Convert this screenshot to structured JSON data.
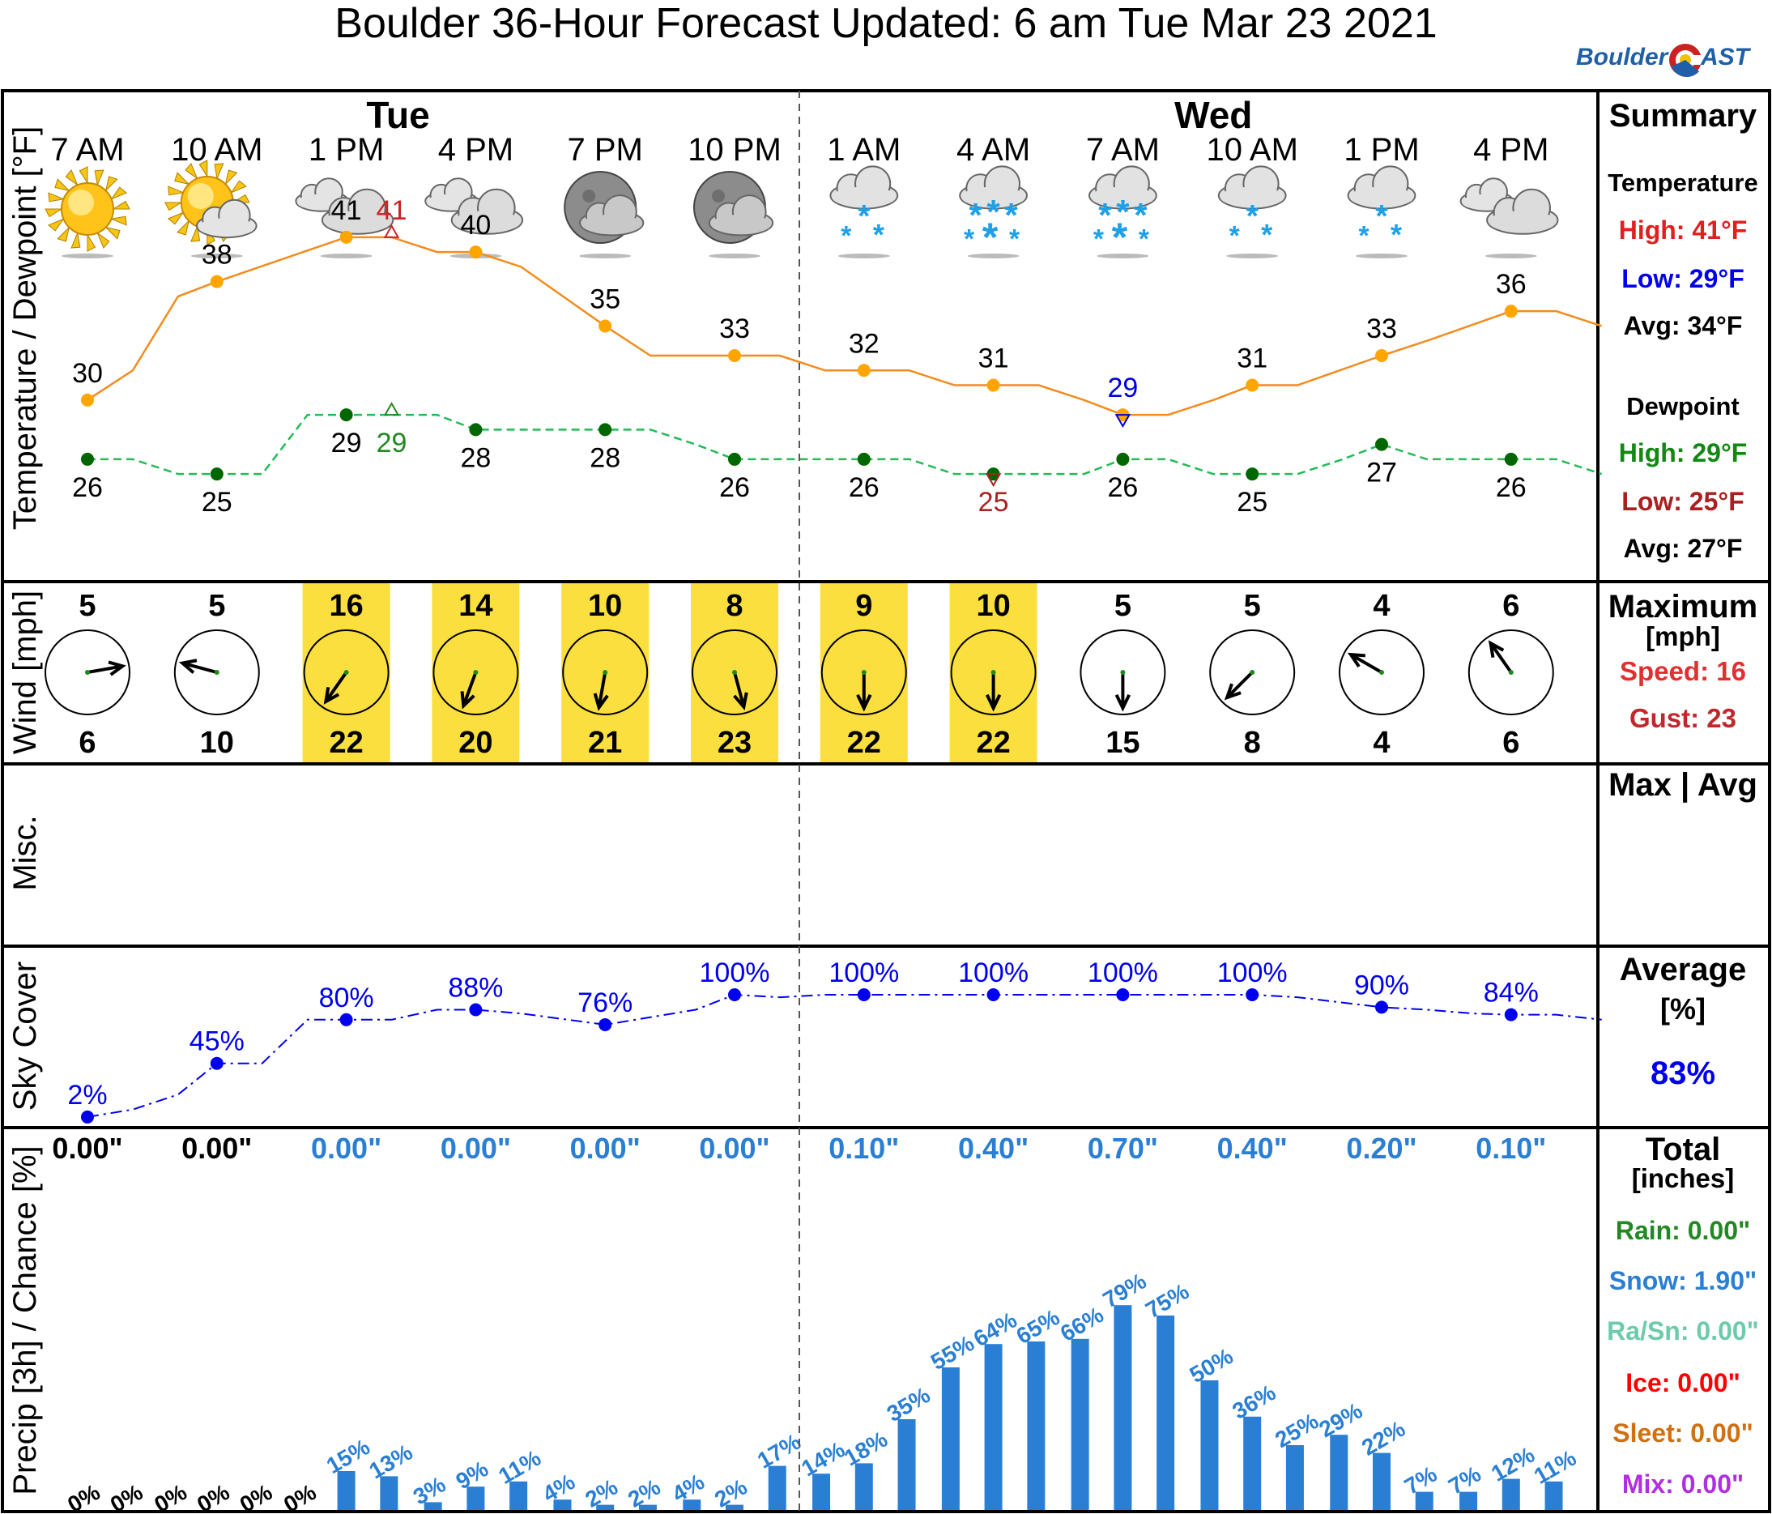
{
  "title": "Boulder 36-Hour Forecast Updated: 6 am Tue Mar 23 2021",
  "logo": {
    "left": "Boulder",
    "right": "AST"
  },
  "days": [
    {
      "label": "Tue",
      "slot": 2.4
    },
    {
      "label": "Wed",
      "slot": 8.7
    }
  ],
  "times": [
    "7 AM",
    "10 AM",
    "1 PM",
    "4 PM",
    "7 PM",
    "10 PM",
    "1 AM",
    "4 AM",
    "7 AM",
    "10 AM",
    "1 PM",
    "4 PM"
  ],
  "icons": [
    "sun",
    "sun-cloud",
    "cloud",
    "cloud",
    "moon-cloud",
    "moon-cloud",
    "snow-light",
    "snow-heavy",
    "snow-heavy",
    "snow-light",
    "snow-light",
    "cloud"
  ],
  "panels": {
    "temperature": "Temperature / Dewpoint [°F]",
    "wind": "Wind [mph]",
    "misc": "Misc.",
    "sky": "Sky Cover",
    "precip": "Precip [3h] / Chance [%]"
  },
  "chart_data": {
    "type": "line",
    "temperature": {
      "values": [
        30,
        38,
        41,
        40,
        35,
        33,
        32,
        31,
        29,
        31,
        33,
        36
      ],
      "color": "#f28c1e",
      "point_color": "#ffa500",
      "labels_shown": [
        "30",
        "38",
        "41",
        "40",
        "35",
        "33",
        "32",
        "31",
        "",
        "31",
        "33",
        "36"
      ],
      "curve": [
        [
          0,
          30
        ],
        [
          0.35,
          32
        ],
        [
          0.7,
          37
        ],
        [
          1,
          38
        ],
        [
          2,
          41
        ],
        [
          2.35,
          41
        ],
        [
          2.7,
          40
        ],
        [
          3,
          40
        ],
        [
          3.35,
          39
        ],
        [
          4,
          35
        ],
        [
          4.35,
          33
        ],
        [
          5,
          33
        ],
        [
          5.35,
          33
        ],
        [
          5.7,
          32
        ],
        [
          6,
          32
        ],
        [
          6.35,
          32
        ],
        [
          6.7,
          31
        ],
        [
          7,
          31
        ],
        [
          7.35,
          31
        ],
        [
          7.7,
          30
        ],
        [
          8,
          29
        ],
        [
          8.35,
          29
        ],
        [
          8.7,
          30
        ],
        [
          9,
          31
        ],
        [
          9.35,
          31
        ],
        [
          10,
          33
        ],
        [
          10.35,
          34
        ],
        [
          11,
          36
        ],
        [
          11.35,
          36
        ],
        [
          11.7,
          35
        ]
      ],
      "high": {
        "value": 41,
        "slot": 2.35,
        "color": "#cc2222"
      },
      "low": {
        "value": 29,
        "slot": 8,
        "color": "#0000dd"
      }
    },
    "dewpoint": {
      "values": [
        26,
        25,
        29,
        28,
        28,
        26,
        26,
        25,
        26,
        25,
        27,
        26
      ],
      "color": "#22bb55",
      "point_color": "#006600",
      "labels_shown": [
        "26",
        "25",
        "29",
        "28",
        "28",
        "26",
        "26",
        "",
        "26",
        "25",
        "27",
        "26"
      ],
      "curve": [
        [
          0,
          26
        ],
        [
          0.35,
          26
        ],
        [
          0.7,
          25
        ],
        [
          1,
          25
        ],
        [
          1.35,
          25
        ],
        [
          1.35,
          25
        ],
        [
          1.7,
          29
        ],
        [
          2,
          29
        ],
        [
          2.35,
          29
        ],
        [
          2.7,
          29
        ],
        [
          3,
          28
        ],
        [
          3.35,
          28
        ],
        [
          3.7,
          28
        ],
        [
          4,
          28
        ],
        [
          4.35,
          28
        ],
        [
          4.7,
          27
        ],
        [
          5,
          26
        ],
        [
          5.35,
          26
        ],
        [
          5.7,
          26
        ],
        [
          6,
          26
        ],
        [
          6.35,
          26
        ],
        [
          6.7,
          25
        ],
        [
          7,
          25
        ],
        [
          7.35,
          25
        ],
        [
          7.7,
          25
        ],
        [
          8,
          26
        ],
        [
          8.35,
          26
        ],
        [
          8.7,
          25
        ],
        [
          9,
          25
        ],
        [
          9.35,
          25
        ],
        [
          9.7,
          26
        ],
        [
          10,
          27
        ],
        [
          10.35,
          26
        ],
        [
          11,
          26
        ],
        [
          11.35,
          26
        ],
        [
          11.7,
          25
        ]
      ],
      "high": {
        "value": 29,
        "slot": 2.35,
        "color": "#228822"
      },
      "low": {
        "value": 25,
        "slot": 7,
        "color": "#aa2222"
      }
    },
    "temp_axis": {
      "min": 22,
      "max": 44
    },
    "wind": {
      "speed": [
        5,
        5,
        16,
        14,
        10,
        8,
        9,
        10,
        5,
        5,
        4,
        6
      ],
      "gust": [
        6,
        10,
        22,
        20,
        21,
        23,
        22,
        22,
        15,
        8,
        4,
        6
      ],
      "direction_to_deg": [
        80,
        285,
        215,
        200,
        190,
        165,
        180,
        180,
        180,
        225,
        300,
        325
      ],
      "highlight": [
        false,
        false,
        true,
        true,
        true,
        true,
        true,
        true,
        false,
        false,
        false,
        false
      ],
      "highlight_color": "#fbdf3e"
    },
    "sky_cover": {
      "values": [
        2,
        45,
        80,
        88,
        76,
        100,
        100,
        100,
        100,
        100,
        90,
        84
      ],
      "labels_shown": [
        "2%",
        "45%",
        "80%",
        "88%",
        "76%",
        "100%",
        "100%",
        "100%",
        "100%",
        "100%",
        "90%",
        "84%"
      ],
      "color": "#0000ee",
      "curve": [
        [
          0,
          2
        ],
        [
          0.35,
          8
        ],
        [
          0.7,
          20
        ],
        [
          1,
          45
        ],
        [
          1.35,
          45
        ],
        [
          1.7,
          80
        ],
        [
          2,
          80
        ],
        [
          2.35,
          80
        ],
        [
          2.7,
          88
        ],
        [
          3,
          88
        ],
        [
          3.35,
          85
        ],
        [
          4,
          76
        ],
        [
          4.35,
          82
        ],
        [
          4.7,
          88
        ],
        [
          5,
          100
        ],
        [
          5.35,
          98
        ],
        [
          5.7,
          100
        ],
        [
          6,
          100
        ],
        [
          6.35,
          100
        ],
        [
          7,
          100
        ],
        [
          7.35,
          100
        ],
        [
          8,
          100
        ],
        [
          8.35,
          100
        ],
        [
          9,
          100
        ],
        [
          9.35,
          98
        ],
        [
          10,
          90
        ],
        [
          10.35,
          88
        ],
        [
          10.7,
          85
        ],
        [
          11,
          84
        ],
        [
          11.35,
          84
        ],
        [
          11.7,
          80
        ]
      ]
    },
    "precip_amount": [
      "0.00\"",
      "0.00\"",
      "0.00\"",
      "0.00\"",
      "0.00\"",
      "0.00\"",
      "0.10\"",
      "0.40\"",
      "0.70\"",
      "0.40\"",
      "0.20\"",
      "0.10\""
    ],
    "precip_amount_color": [
      "#000000",
      "#000000",
      "#2a7fd4",
      "#2a7fd4",
      "#2a7fd4",
      "#2a7fd4",
      "#2a7fd4",
      "#2a7fd4",
      "#2a7fd4",
      "#2a7fd4",
      "#2a7fd4",
      "#2a7fd4"
    ],
    "precip_chance": {
      "slots": [
        0,
        0.33,
        0.67,
        1,
        1.33,
        1.67,
        2,
        2.33,
        2.67,
        3,
        3.33,
        3.67,
        4,
        4.33,
        4.67,
        5,
        5.33,
        5.67,
        6,
        6.33,
        6.67,
        7,
        7.33,
        7.67,
        8,
        8.33,
        8.67,
        9,
        9.33,
        9.67,
        10,
        10.33,
        10.67,
        11,
        11.33,
        11.67
      ],
      "values": [
        0,
        0,
        0,
        0,
        0,
        0,
        15,
        13,
        3,
        9,
        11,
        4,
        2,
        2,
        4,
        2,
        17,
        14,
        18,
        35,
        55,
        64,
        65,
        66,
        79,
        75,
        50,
        36,
        25,
        29,
        22,
        7,
        7,
        12,
        11,
        0
      ],
      "labels_shown": [
        "0%",
        "0%",
        "0%",
        "0%",
        "0%",
        "0%",
        "15%",
        "13%",
        "3%",
        "9%",
        "11%",
        "4%",
        "2%",
        "2%",
        "4%",
        "2%",
        "17%",
        "14%",
        "18%",
        "35%",
        "55%",
        "64%",
        "65%",
        "66%",
        "79%",
        "75%",
        "50%",
        "36%",
        "25%",
        "29%",
        "22%",
        "7%",
        "7%",
        "12%",
        "11%",
        ""
      ],
      "color": "#2a7fd4"
    }
  },
  "summary": {
    "header": "Summary",
    "temperature": {
      "title": "Temperature",
      "high": "High: 41°F",
      "low": "Low: 29°F",
      "avg": "Avg: 34°F"
    },
    "dewpoint": {
      "title": "Dewpoint",
      "high": "High: 29°F",
      "low": "Low: 25°F",
      "avg": "Avg: 27°F"
    },
    "wind": {
      "title": "Maximum",
      "unit": "[mph]",
      "speed": "Speed: 16",
      "gust": "Gust: 23"
    },
    "misc": {
      "title": "Max | Avg"
    },
    "sky": {
      "title": "Average",
      "unit": "[%]",
      "value": "83%"
    },
    "precip": {
      "title": "Total",
      "unit": "[inches]",
      "rain": "Rain: 0.00\"",
      "snow": "Snow: 1.90\"",
      "rasn": "Ra/Sn: 0.00\"",
      "ice": "Ice: 0.00\"",
      "sleet": "Sleet: 0.00\"",
      "mix": "Mix: 0.00\""
    }
  },
  "colors": {
    "high_temp": "#e02020",
    "low_temp": "#0000ee",
    "dew_high": "#118811",
    "dew_low": "#aa2020",
    "gust": "#c0282c",
    "speed": "#e03030",
    "sky_avg": "#0000ee",
    "rain": "#228822",
    "snow": "#2a7fd4",
    "rasn": "#6ccba8",
    "ice": "#ff0000",
    "sleet": "#d07010",
    "mix": "#b030e0"
  }
}
